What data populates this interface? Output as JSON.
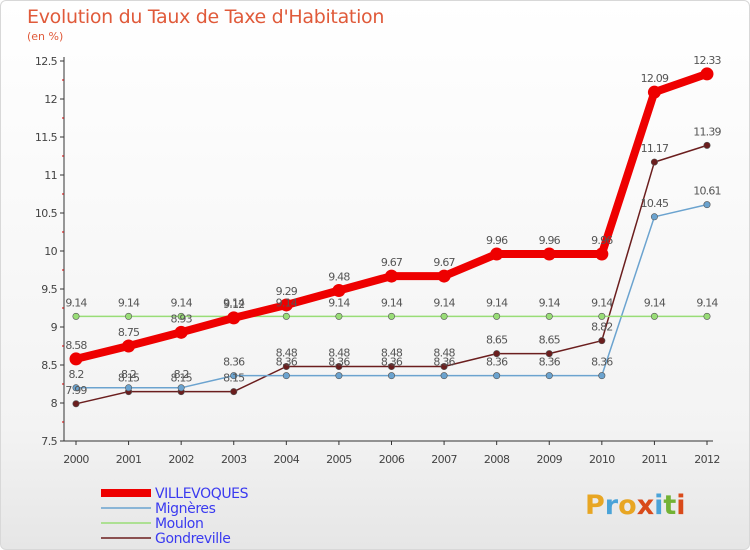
{
  "header": {
    "title": "Evolution du Taux de Taxe d'Habitation",
    "subtitle": "(en %)"
  },
  "logo": {
    "text": "Proxiti",
    "colors": [
      "#e8a623",
      "#4aa3d8",
      "#e8a623",
      "#d94a1a",
      "#4aa3d8",
      "#73b234",
      "#d94a1a"
    ]
  },
  "chart_data": {
    "type": "line",
    "x": [
      "2000",
      "2001",
      "2002",
      "2003",
      "2004",
      "2005",
      "2006",
      "2007",
      "2008",
      "2009",
      "2010",
      "2011",
      "2012"
    ],
    "ylim": [
      7.5,
      12.5
    ],
    "yticks": [
      "7.5",
      "8",
      "8.5",
      "9",
      "9.5",
      "10",
      "10.5",
      "11",
      "11.5",
      "12",
      "12.5"
    ],
    "grid": false,
    "legend_position": "bottom-left",
    "series": [
      {
        "name": "Gondreville",
        "color": "#6b1e1e",
        "width": 1.5,
        "values": [
          7.99,
          8.15,
          8.15,
          8.15,
          8.48,
          8.48,
          8.48,
          8.48,
          8.65,
          8.65,
          8.82,
          11.17,
          11.39
        ],
        "labels": [
          "7.99",
          "8.15",
          "8.15",
          "8.15",
          "8.48",
          "8.48",
          "8.48",
          "8.48",
          "8.65",
          "8.65",
          "8.82",
          "11.17",
          "11.39"
        ]
      },
      {
        "name": "Mignères",
        "color": "#6ba3cf",
        "width": 1.5,
        "values": [
          8.2,
          8.2,
          8.2,
          8.36,
          8.36,
          8.36,
          8.36,
          8.36,
          8.36,
          8.36,
          8.36,
          10.45,
          10.61
        ],
        "labels": [
          "8.2",
          "8.2",
          "8.2",
          "8.36",
          "8.36",
          "8.36",
          "8.36",
          "8.36",
          "8.36",
          "8.36",
          "8.36",
          "10.45",
          "10.61"
        ]
      },
      {
        "name": "Moulon",
        "color": "#99dd77",
        "width": 1.5,
        "values": [
          9.14,
          9.14,
          9.14,
          9.14,
          9.14,
          9.14,
          9.14,
          9.14,
          9.14,
          9.14,
          9.14,
          9.14,
          9.14
        ],
        "labels": [
          "9.14",
          "9.14",
          "9.14",
          "9.14",
          "9.14",
          "9.14",
          "9.14",
          "9.14",
          "9.14",
          "9.14",
          "9.14",
          "9.14",
          "9.14"
        ]
      },
      {
        "name": "VILLEVOQUES",
        "color": "#ee0000",
        "width": 8,
        "values": [
          8.58,
          8.75,
          8.93,
          9.12,
          9.29,
          9.48,
          9.67,
          9.67,
          9.96,
          9.96,
          9.96,
          12.09,
          12.33
        ],
        "labels": [
          "8.58",
          "8.75",
          "8.93",
          "9.12",
          "9.29",
          "9.48",
          "9.67",
          "9.67",
          "9.96",
          "9.96",
          "9.96",
          "12.09",
          "12.33"
        ]
      }
    ],
    "legend_order": [
      "VILLEVOQUES",
      "Mignères",
      "Moulon",
      "Gondreville"
    ],
    "legend_text_colors": {
      "VILLEVOQUES": "#3a3af0",
      "Mignères": "#3a3af0",
      "Moulon": "#3a3af0",
      "Gondreville": "#3a3af0"
    }
  }
}
